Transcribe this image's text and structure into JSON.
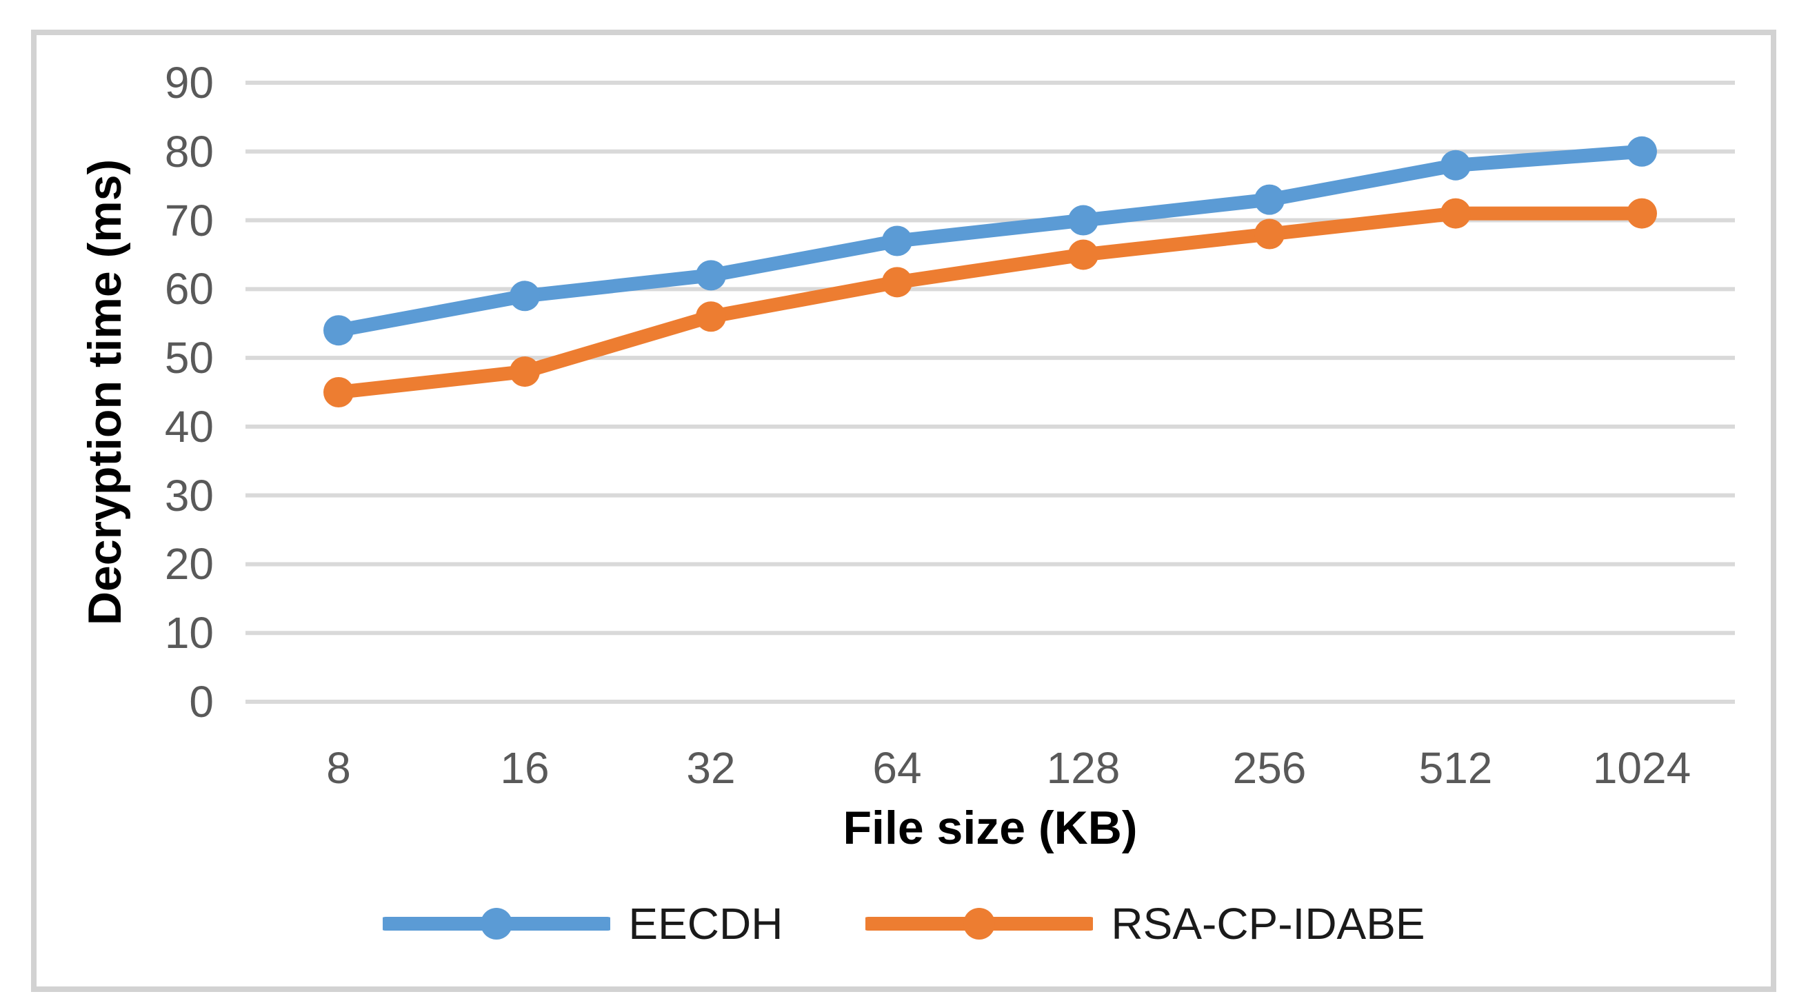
{
  "figure": {
    "background": "#FFFFFF",
    "border_color": "#D2D2D2"
  },
  "chart_data": {
    "type": "line",
    "title": "",
    "xlabel": "File size (KB)",
    "ylabel": "Decryption time (ms)",
    "categories": [
      "8",
      "16",
      "32",
      "64",
      "128",
      "256",
      "512",
      "1024"
    ],
    "series": [
      {
        "name": "EECDH",
        "color": "#5B9BD5",
        "values": [
          54,
          59,
          62,
          67,
          70,
          73,
          78,
          80
        ]
      },
      {
        "name": "RSA-CP-IDABE",
        "color": "#ED7D31",
        "values": [
          45,
          48,
          56,
          61,
          65,
          68,
          71,
          71
        ]
      }
    ],
    "ylim": [
      0,
      90
    ],
    "yticks": [
      0,
      10,
      20,
      30,
      40,
      50,
      60,
      70,
      80,
      90
    ],
    "grid": "horizontal",
    "gridline_color": "#D9D9D9",
    "tick_label_color": "#595959",
    "axis_title_color": "#000000",
    "legend_position": "bottom",
    "marker": "circle"
  }
}
